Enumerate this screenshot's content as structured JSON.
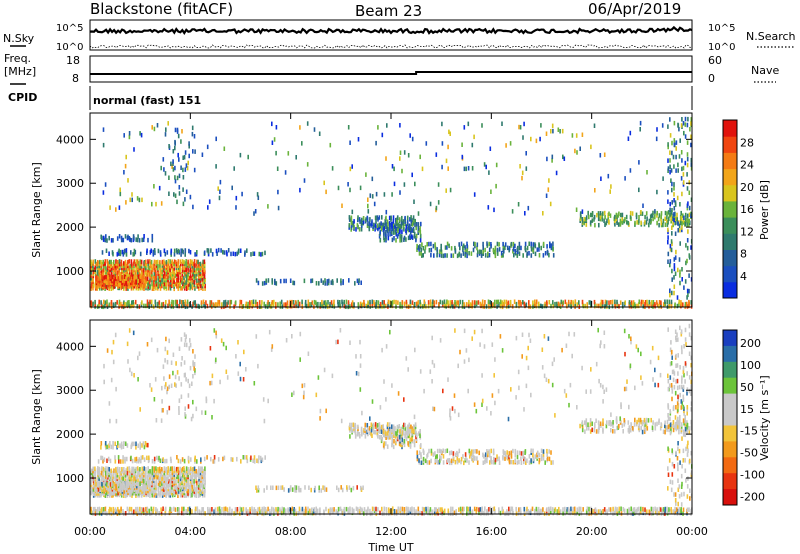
{
  "header": {
    "station": "Blackstone (fitACF)",
    "beam": "Beam 23",
    "date": "06/Apr/2019"
  },
  "left_labels": {
    "nsky": "N.Sky",
    "freq": "Freq.",
    "freq_unit": "[MHz]",
    "cpid": "CPID"
  },
  "right_labels": {
    "nsearch": "N.Search",
    "nave": "Nave"
  },
  "noise_panel": {
    "left_ticks": [
      "10^5",
      "10^0"
    ],
    "right_ticks": [
      "10^5",
      "10^0"
    ]
  },
  "freq_panel": {
    "left_ticks": [
      "18",
      "8"
    ],
    "right_ticks": [
      "60",
      "0"
    ]
  },
  "cpid_text": "normal (fast) 151",
  "chart_data": [
    {
      "type": "heatmap",
      "name": "power",
      "ylabel": "Slant Range [km]",
      "ylim": [
        180,
        4600
      ],
      "yticks": [
        1000,
        2000,
        3000,
        4000
      ],
      "xlim": [
        0,
        24
      ],
      "colorbar": {
        "label": "Power [dB]",
        "ticks": [
          "4",
          "8",
          "12",
          "16",
          "20",
          "24",
          "28"
        ],
        "colors": [
          "#0a2de0",
          "#1b4fbf",
          "#245e9a",
          "#2f7a6e",
          "#3b8e5a",
          "#6ab33b",
          "#d9c51e",
          "#f2a51a",
          "#f47b14",
          "#f04510",
          "#e0120c"
        ]
      }
    },
    {
      "type": "heatmap",
      "name": "velocity",
      "ylabel": "Slant Range [km]",
      "ylim": [
        180,
        4600
      ],
      "yticks": [
        1000,
        2000,
        3000,
        4000
      ],
      "xlim": [
        0,
        24
      ],
      "xticks": [
        "00:00",
        "04:00",
        "08:00",
        "12:00",
        "16:00",
        "20:00",
        "00:00"
      ],
      "xlabel": "Time UT",
      "colorbar": {
        "label": "Velocity [m s⁻¹]",
        "ticks": [
          "200",
          "100",
          "50",
          "15",
          "-15",
          "-50",
          "-100",
          "-200"
        ],
        "colors": [
          "#1a3fbf",
          "#2a6ea8",
          "#3f9a6a",
          "#6cc43a",
          "#c9c9c9",
          "#c9c9c9",
          "#f2c43a",
          "#f39a1c",
          "#f36a12",
          "#e83410",
          "#d8100c"
        ]
      }
    }
  ]
}
